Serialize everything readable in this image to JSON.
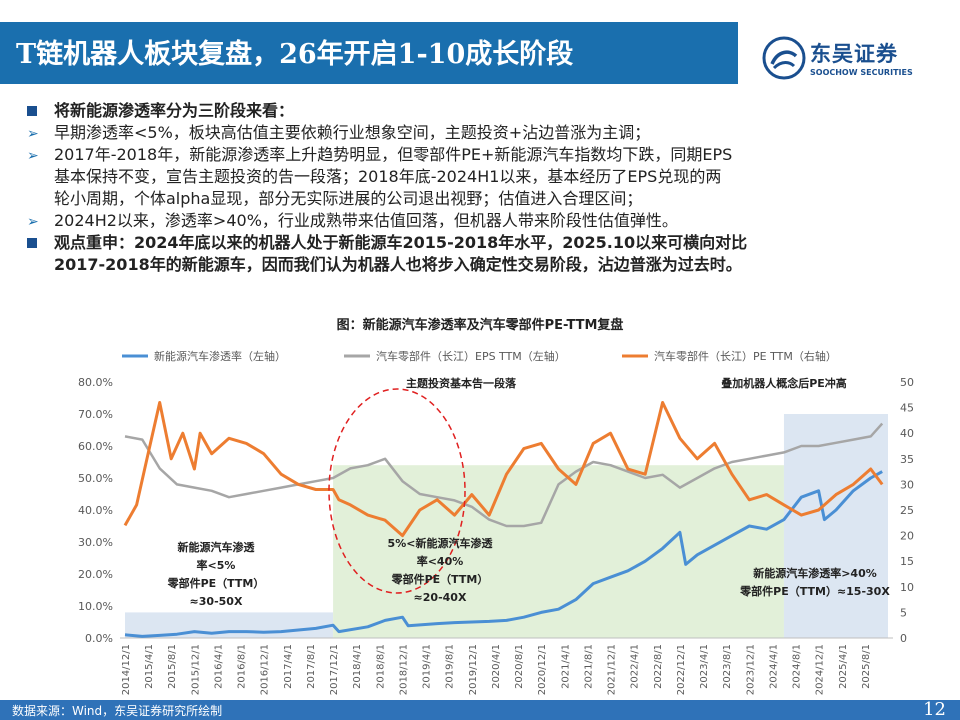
{
  "header": {
    "title": "T链机器人板块复盘，26年开启1-10成长阶段"
  },
  "logo": {
    "name": "东吴证券",
    "en": "SOOCHOW SECURITIES"
  },
  "bullets": [
    {
      "type": "square",
      "bold": true,
      "text": "将新能源渗透率分为三阶段来看："
    },
    {
      "type": "arrow",
      "bold": false,
      "text": "早期渗透率<5%，板块高估值主要依赖行业想象空间，主题投资+沾边普涨为主调；"
    },
    {
      "type": "arrow",
      "bold": false,
      "text": "2017年-2018年，新能源渗透率上升趋势明显，但零部件PE+新能源汽车指数均下跌，同期EPS"
    },
    {
      "type": "cont",
      "bold": false,
      "text": "基本保持不变，宣告主题投资的告一段落；2018年底-2024H1以来，基本经历了EPS兑现的两"
    },
    {
      "type": "cont",
      "bold": false,
      "text": "轮小周期，个体alpha显现，部分无实际进展的公司退出视野；估值进入合理区间；"
    },
    {
      "type": "arrow",
      "bold": false,
      "text": "2024H2以来，渗透率>40%，行业成熟带来估值回落，但机器人带来阶段性估值弹性。"
    },
    {
      "type": "square",
      "bold": true,
      "text": "观点重申：2024年底以来的机器人处于新能源车2015-2018年水平，2025.10以来可横向对比"
    },
    {
      "type": "cont",
      "bold": true,
      "text": "2017-2018年的新能源车，因而我们认为机器人也将步入确定性交易阶段，沾边普涨为过去时。"
    }
  ],
  "chart_title": "图：新能源汽车渗透率及汽车零部件PE-TTM复盘",
  "chart_data": {
    "type": "line",
    "series": [
      {
        "name": "新能源汽车渗透率（左轴）",
        "axis": "left",
        "color": "#4a8fd4",
        "points": [
          [
            "2014-12",
            1.0
          ],
          [
            "2015-03",
            0.5
          ],
          [
            "2015-06",
            0.8
          ],
          [
            "2015-09",
            1.2
          ],
          [
            "2015-12",
            2.0
          ],
          [
            "2016-03",
            1.5
          ],
          [
            "2016-06",
            2.0
          ],
          [
            "2016-09",
            2.0
          ],
          [
            "2016-12",
            1.8
          ],
          [
            "2017-03",
            2.0
          ],
          [
            "2017-06",
            2.5
          ],
          [
            "2017-09",
            3.0
          ],
          [
            "2017-12",
            4.0
          ],
          [
            "2018-01",
            2.0
          ],
          [
            "2018-06",
            3.5
          ],
          [
            "2018-09",
            5.5
          ],
          [
            "2018-12",
            6.5
          ],
          [
            "2019-01",
            3.8
          ],
          [
            "2019-06",
            4.5
          ],
          [
            "2019-09",
            4.8
          ],
          [
            "2019-12",
            5.0
          ],
          [
            "2020-03",
            5.2
          ],
          [
            "2020-06",
            5.5
          ],
          [
            "2020-09",
            6.5
          ],
          [
            "2020-12",
            8.0
          ],
          [
            "2021-03",
            9.0
          ],
          [
            "2021-06",
            12.0
          ],
          [
            "2021-09",
            17.0
          ],
          [
            "2021-12",
            19.0
          ],
          [
            "2022-03",
            21.0
          ],
          [
            "2022-06",
            24.0
          ],
          [
            "2022-09",
            28.0
          ],
          [
            "2022-12",
            33.0
          ],
          [
            "2023-01",
            23.0
          ],
          [
            "2023-03",
            26.0
          ],
          [
            "2023-06",
            29.0
          ],
          [
            "2023-09",
            32.0
          ],
          [
            "2023-12",
            35.0
          ],
          [
            "2024-03",
            34.0
          ],
          [
            "2024-06",
            37.0
          ],
          [
            "2024-09",
            44.0
          ],
          [
            "2024-12",
            46.0
          ],
          [
            "2025-01",
            37.0
          ],
          [
            "2025-03",
            40.0
          ],
          [
            "2025-06",
            46.0
          ],
          [
            "2025-09",
            50.0
          ],
          [
            "2025-11",
            52.0
          ]
        ]
      },
      {
        "name": "汽车零部件（长江）EPS TTM（左轴）",
        "axis": "left",
        "color": "#a6a6a6",
        "points": [
          [
            "2014-12",
            63
          ],
          [
            "2015-03",
            62
          ],
          [
            "2015-06",
            53
          ],
          [
            "2015-09",
            48
          ],
          [
            "2015-12",
            47
          ],
          [
            "2016-03",
            46
          ],
          [
            "2016-06",
            44
          ],
          [
            "2016-09",
            45
          ],
          [
            "2016-12",
            46
          ],
          [
            "2017-03",
            47
          ],
          [
            "2017-06",
            48
          ],
          [
            "2017-09",
            49
          ],
          [
            "2017-12",
            50
          ],
          [
            "2018-03",
            53
          ],
          [
            "2018-06",
            54
          ],
          [
            "2018-09",
            56
          ],
          [
            "2018-12",
            49
          ],
          [
            "2019-03",
            45
          ],
          [
            "2019-06",
            44
          ],
          [
            "2019-09",
            43
          ],
          [
            "2019-12",
            41
          ],
          [
            "2020-03",
            37
          ],
          [
            "2020-06",
            35
          ],
          [
            "2020-09",
            35
          ],
          [
            "2020-12",
            36
          ],
          [
            "2021-03",
            48
          ],
          [
            "2021-06",
            52
          ],
          [
            "2021-09",
            55
          ],
          [
            "2021-12",
            54
          ],
          [
            "2022-03",
            52
          ],
          [
            "2022-06",
            50
          ],
          [
            "2022-09",
            51
          ],
          [
            "2022-12",
            47
          ],
          [
            "2023-03",
            50
          ],
          [
            "2023-06",
            53
          ],
          [
            "2023-09",
            55
          ],
          [
            "2023-12",
            56
          ],
          [
            "2024-03",
            57
          ],
          [
            "2024-06",
            58
          ],
          [
            "2024-09",
            60
          ],
          [
            "2024-12",
            60
          ],
          [
            "2025-03",
            61
          ],
          [
            "2025-06",
            62
          ],
          [
            "2025-09",
            63
          ],
          [
            "2025-11",
            67
          ]
        ]
      },
      {
        "name": "汽车零部件（长江）PE TTM（右轴）",
        "axis": "right",
        "color": "#ed7d31",
        "points": [
          [
            "2014-12",
            22
          ],
          [
            "2015-02",
            26
          ],
          [
            "2015-04",
            36
          ],
          [
            "2015-06",
            46
          ],
          [
            "2015-08",
            35
          ],
          [
            "2015-10",
            40
          ],
          [
            "2015-12",
            33
          ],
          [
            "2016-01",
            40
          ],
          [
            "2016-03",
            36
          ],
          [
            "2016-06",
            39
          ],
          [
            "2016-09",
            38
          ],
          [
            "2016-12",
            36
          ],
          [
            "2017-03",
            32
          ],
          [
            "2017-06",
            30
          ],
          [
            "2017-09",
            29
          ],
          [
            "2017-12",
            29
          ],
          [
            "2018-01",
            27
          ],
          [
            "2018-03",
            26
          ],
          [
            "2018-06",
            24
          ],
          [
            "2018-09",
            23
          ],
          [
            "2018-12",
            20
          ],
          [
            "2019-03",
            25
          ],
          [
            "2019-06",
            27
          ],
          [
            "2019-09",
            24
          ],
          [
            "2019-12",
            28
          ],
          [
            "2020-03",
            24
          ],
          [
            "2020-06",
            32
          ],
          [
            "2020-09",
            37
          ],
          [
            "2020-12",
            38
          ],
          [
            "2021-03",
            33
          ],
          [
            "2021-06",
            30
          ],
          [
            "2021-09",
            38
          ],
          [
            "2021-12",
            40
          ],
          [
            "2022-03",
            33
          ],
          [
            "2022-06",
            32
          ],
          [
            "2022-09",
            46
          ],
          [
            "2022-12",
            39
          ],
          [
            "2023-03",
            35
          ],
          [
            "2023-06",
            38
          ],
          [
            "2023-09",
            32
          ],
          [
            "2023-12",
            27
          ],
          [
            "2024-03",
            28
          ],
          [
            "2024-06",
            26
          ],
          [
            "2024-09",
            24
          ],
          [
            "2024-12",
            25
          ],
          [
            "2025-03",
            28
          ],
          [
            "2025-06",
            30
          ],
          [
            "2025-09",
            33
          ],
          [
            "2025-11",
            30
          ]
        ]
      }
    ],
    "x_range": [
      "2014-12",
      "2025-12"
    ],
    "x_ticks": [
      "2014/12/1",
      "2015/4/1",
      "2015/8/1",
      "2015/12/1",
      "2016/4/1",
      "2016/8/1",
      "2016/12/1",
      "2017/4/1",
      "2017/8/1",
      "2017/12/1",
      "2018/4/1",
      "2018/8/1",
      "2018/12/1",
      "2019/4/1",
      "2019/8/1",
      "2019/12/1",
      "2020/4/1",
      "2020/8/1",
      "2020/12/1",
      "2021/4/1",
      "2021/8/1",
      "2021/12/1",
      "2022/4/1",
      "2022/8/1",
      "2022/12/1",
      "2023/4/1",
      "2023/8/1",
      "2023/12/1",
      "2024/4/1",
      "2024/8/1",
      "2024/12/1",
      "2025/4/1",
      "2025/8/1"
    ],
    "y_left": {
      "min": 0,
      "max": 80,
      "ticks": [
        "0.0%",
        "10.0%",
        "20.0%",
        "30.0%",
        "40.0%",
        "50.0%",
        "60.0%",
        "70.0%",
        "80.0%"
      ]
    },
    "y_right": {
      "min": 0,
      "max": 50,
      "ticks": [
        "0",
        "5",
        "10",
        "15",
        "20",
        "25",
        "30",
        "35",
        "40",
        "45",
        "50"
      ]
    },
    "shaded_regions": [
      {
        "from": "2014-12",
        "to": "2017-12",
        "y_max": 8,
        "color": "#dce6f2"
      },
      {
        "from": "2017-12",
        "to": "2024-06",
        "y_max": 54,
        "color": "#e2f0d9"
      },
      {
        "from": "2024-06",
        "to": "2025-12",
        "y_max": 70,
        "color": "#dce6f2"
      }
    ],
    "annotations": {
      "top_label_1": "主题投资基本告一段落",
      "top_label_2": "叠加机器人概念后PE冲高",
      "stage1": [
        "新能源汽车渗透",
        "率<5%",
        "零部件PE（TTM）",
        "≈30-50X"
      ],
      "stage2": [
        "5%<新能源汽车渗透",
        "率<40%",
        "零部件PE（TTM）",
        "≈20-40X"
      ],
      "stage3": [
        "新能源汽车渗透率>40%",
        "零部件PE（TTM）≈15-30X"
      ]
    }
  },
  "footer": {
    "source": "数据来源：Wind，东吴证券研究所绘制",
    "page": "12"
  }
}
